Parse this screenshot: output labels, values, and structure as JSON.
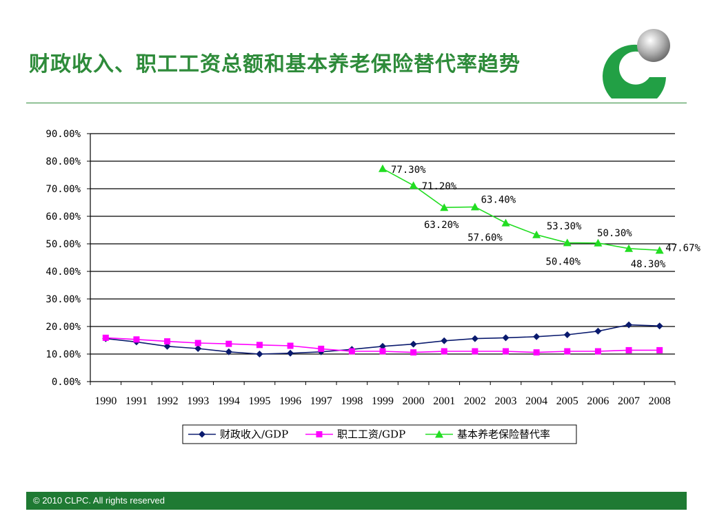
{
  "page": {
    "title": "财政收入、职工工资总额和基本养老保险替代率趋势",
    "footer": "© 2010 CLPC. All rights reserved",
    "accent_color": "#2e8b3a",
    "footer_color": "#1f7a33"
  },
  "chart_data": {
    "type": "line",
    "title": "",
    "xlabel": "",
    "ylabel": "",
    "ylim": [
      0,
      90
    ],
    "y_ticks": [
      "0.00%",
      "10.00%",
      "20.00%",
      "30.00%",
      "40.00%",
      "50.00%",
      "60.00%",
      "70.00%",
      "80.00%",
      "90.00%"
    ],
    "grid": true,
    "legend_position": "bottom",
    "categories": [
      "1990",
      "1991",
      "1992",
      "1993",
      "1994",
      "1995",
      "1996",
      "1997",
      "1998",
      "1999",
      "2000",
      "2001",
      "2002",
      "2003",
      "2004",
      "2005",
      "2006",
      "2007",
      "2008"
    ],
    "series": [
      {
        "name": "财政收入/GDP",
        "color": "#0a1a6e",
        "marker": "diamond",
        "values": [
          15.6,
          14.4,
          12.8,
          12.0,
          10.8,
          10.0,
          10.3,
          10.8,
          11.7,
          12.8,
          13.6,
          14.8,
          15.6,
          15.9,
          16.3,
          17.0,
          18.3,
          20.6,
          20.2
        ]
      },
      {
        "name": "职工工资/GDP",
        "color": "#ff00ff",
        "marker": "square",
        "values": [
          15.9,
          15.3,
          14.6,
          14.0,
          13.7,
          13.3,
          13.0,
          11.9,
          11.0,
          11.0,
          10.6,
          11.0,
          11.0,
          11.0,
          10.6,
          11.0,
          11.0,
          11.4,
          11.4
        ]
      },
      {
        "name": "基本养老保险替代率",
        "color": "#22dd22",
        "marker": "triangle",
        "values": [
          null,
          null,
          null,
          null,
          null,
          null,
          null,
          null,
          null,
          77.3,
          71.2,
          63.2,
          63.4,
          57.6,
          53.3,
          50.4,
          50.3,
          48.3,
          47.67
        ]
      }
    ],
    "annotations": [
      {
        "label": "77.30%",
        "x": "1999",
        "y": 77.3
      },
      {
        "label": "71.20%",
        "x": "2000",
        "y": 71.2
      },
      {
        "label": "63.20%",
        "x": "2001",
        "y": 63.2
      },
      {
        "label": "63.40%",
        "x": "2002",
        "y": 63.4
      },
      {
        "label": "57.60%",
        "x": "2003",
        "y": 57.6
      },
      {
        "label": "53.30%",
        "x": "2004",
        "y": 53.3
      },
      {
        "label": "50.40%",
        "x": "2005",
        "y": 50.4
      },
      {
        "label": "50.30%",
        "x": "2006",
        "y": 50.3
      },
      {
        "label": "48.30%",
        "x": "2007",
        "y": 48.3
      },
      {
        "label": "47.67%",
        "x": "2008",
        "y": 47.67
      }
    ]
  }
}
